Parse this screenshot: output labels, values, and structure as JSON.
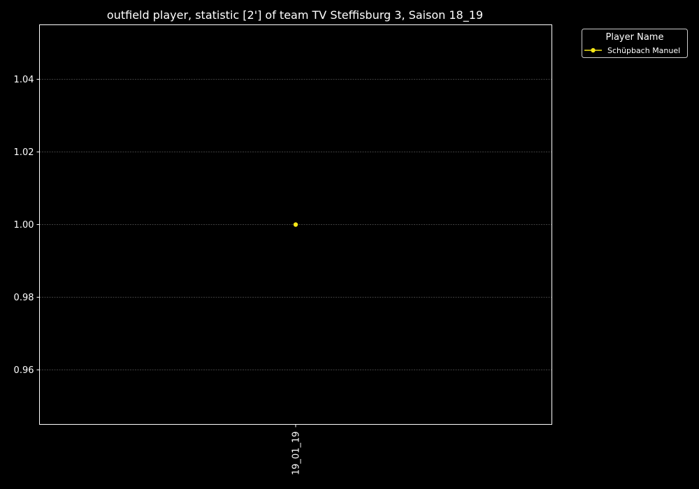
{
  "chart_data": {
    "type": "line",
    "title": "outfield player, statistic [2'] of team TV Steffisburg 3, Saison 18_19",
    "xlabel": "",
    "ylabel": "",
    "categories": [
      "19_01_19"
    ],
    "ylim": [
      0.945,
      1.055
    ],
    "yticks": [
      "0.96",
      "0.98",
      "1.00",
      "1.02",
      "1.04"
    ],
    "grid": true,
    "legend": {
      "title": "Player Name",
      "placement": "outside-top-right"
    },
    "series": [
      {
        "name": "Schüpbach Manuel",
        "values": [
          1.0
        ],
        "color": "#f5e617"
      }
    ]
  },
  "colors": {
    "background": "#000000",
    "axis": "#ffffff",
    "grid": "#808080"
  }
}
